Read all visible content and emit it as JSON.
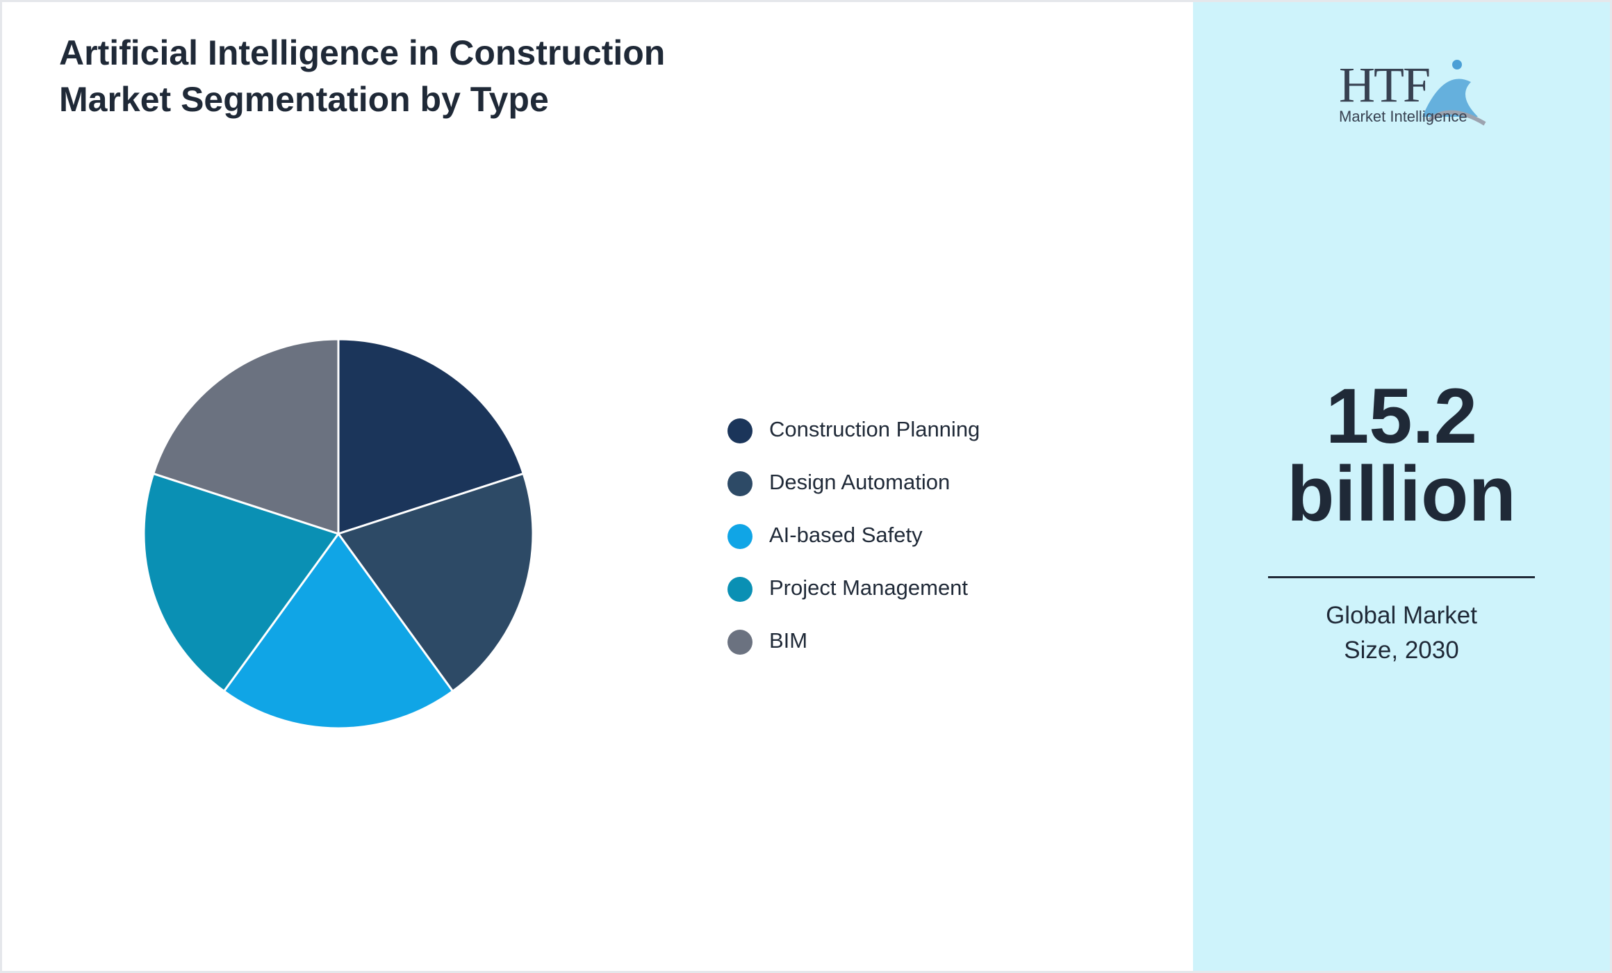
{
  "chart_data": {
    "type": "pie",
    "title": "Artificial Intelligence in Construction Market Segmentation by Type",
    "categories": [
      "Construction Planning",
      "Design Automation",
      "AI-based Safety",
      "Project Management",
      "BIM"
    ],
    "values": [
      20,
      20,
      20,
      20,
      20
    ],
    "colors": [
      "#1b355a",
      "#2d4a66",
      "#10a5e6",
      "#0a90b4",
      "#6b7280"
    ]
  },
  "logo": {
    "mark": "HTF",
    "text": "Market Intelligence"
  },
  "stat": {
    "number": "15.2",
    "unit": "billion",
    "caption": "Global Market Size, 2030"
  }
}
